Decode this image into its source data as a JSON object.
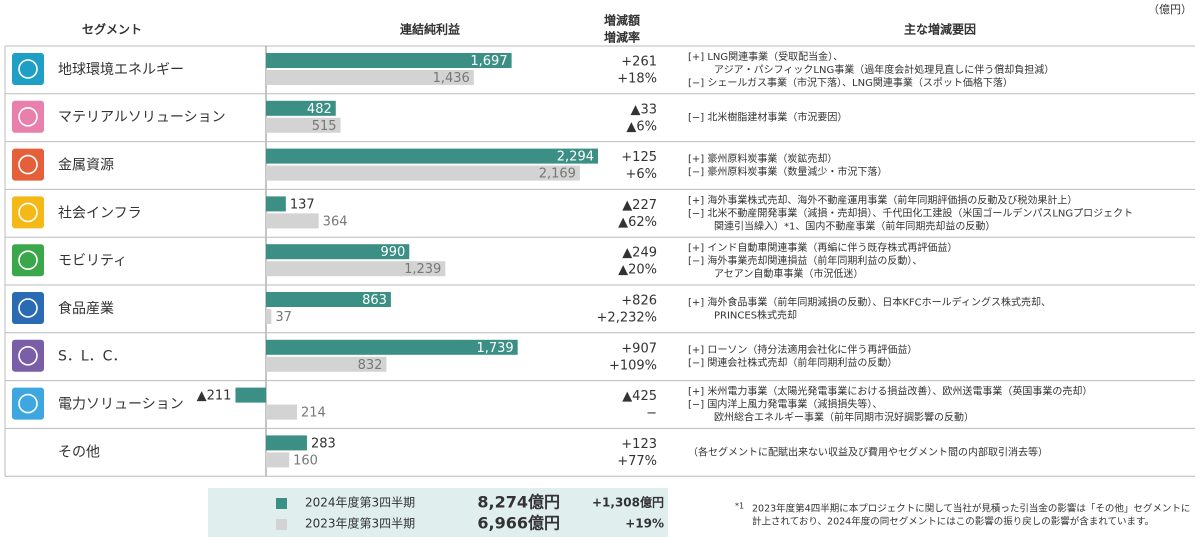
{
  "header": {
    "segment": "セグメント",
    "profit": "連結純利益",
    "change": "増減額",
    "rate": "増減率",
    "reasons": "主な増減要因",
    "unit": "（億円）"
  },
  "legend": {
    "items": [
      {
        "name": "2024年度第3四半期",
        "color": "#3b8f84",
        "total": "8,274億円",
        "change": "+1,308億円"
      },
      {
        "name": "2023年度第3四半期",
        "color": "#d3d3d3",
        "total": "6,966億円",
        "change": "+19%"
      }
    ]
  },
  "rows": [
    {
      "segment": "地球環境エネルギー",
      "icon_color": "#1e9fc6",
      "values": [
        1697,
        1436
      ],
      "value_labels": [
        "1,697",
        "1,436"
      ],
      "change": "+261",
      "rate": "+18%",
      "reasons": [
        "[+] LNG関連事業（受取配当金）、",
        "アジア・パシフィックLNG事業（過年度会計処理見直しに伴う償却負担減）",
        "[−] シェールガス事業（市況下落）、LNG関連事業（スポット価格下落）"
      ]
    },
    {
      "segment": "マテリアルソリューション",
      "icon_color": "#e97fab",
      "values": [
        482,
        515
      ],
      "value_labels": [
        "482",
        "515"
      ],
      "change": "▲33",
      "rate": "▲6%",
      "reasons": [
        "[−] 北米樹脂建材事業（市況要因）"
      ]
    },
    {
      "segment": "金属資源",
      "icon_color": "#e5603a",
      "values": [
        2294,
        2169
      ],
      "value_labels": [
        "2,294",
        "2,169"
      ],
      "change": "+125",
      "rate": "+6%",
      "reasons": [
        "[+] 豪州原料炭事業（炭鉱売却）",
        "[−] 豪州原料炭事業（数量減少・市況下落）"
      ]
    },
    {
      "segment": "社会インフラ",
      "icon_color": "#f4b817",
      "values": [
        137,
        364
      ],
      "value_labels": [
        "137",
        "364"
      ],
      "change": "▲227",
      "rate": "▲62%",
      "reasons": [
        "[+] 海外事業株式売却、海外不動産運用事業（前年同期評価損の反動及び税効果計上）",
        "[−] 北米不動産開発事業（減損・売却損）、千代田化工建設（米国ゴールデンパスLNGプロジェクト",
        "関連引当繰入）*1、国内不動産事業（前年同期売却益の反動）"
      ]
    },
    {
      "segment": "モビリティ",
      "icon_color": "#3aa84a",
      "values": [
        990,
        1239
      ],
      "value_labels": [
        "990",
        "1,239"
      ],
      "change": "▲249",
      "rate": "▲20%",
      "reasons": [
        "[+] インド自動車関連事業（再編に伴う既存株式再評価益）",
        "[−] 海外事業売却関連損益（前年同期利益の反動）、",
        "アセアン自動車事業（市況低迷）"
      ]
    },
    {
      "segment": "食品産業",
      "icon_color": "#2a6bb4",
      "values": [
        863,
        37
      ],
      "value_labels": [
        "863",
        "37"
      ],
      "change": "+826",
      "rate": "+2,232%",
      "reasons": [
        "[+] 海外食品事業（前年同期減損の反動）、日本KFCホールディングス株式売却、",
        "PRINCES株式売却"
      ]
    },
    {
      "segment": "S．L．C．",
      "icon_color": "#7a5ea8",
      "values": [
        1739,
        832
      ],
      "value_labels": [
        "1,739",
        "832"
      ],
      "change": "+907",
      "rate": "+109%",
      "reasons": [
        "[+] ローソン（持分法適用会社化に伴う再評価益）",
        "[−] 関連会社株式売却（前年同期利益の反動）"
      ]
    },
    {
      "segment": "電力ソリューション",
      "icon_color": "#3ea7df",
      "values": [
        -211,
        214
      ],
      "value_labels": [
        "▲211",
        "214"
      ],
      "change": "▲425",
      "rate": "−",
      "reasons": [
        "[+] 米州電力事業（太陽光発電事業における損益改善）、欧州送電事業（英国事業の売却）",
        "[−] 国内洋上風力発電事業（減損損失等）、",
        "欧州総合エネルギー事業（前年同期市況好調影響の反動）"
      ]
    },
    {
      "segment": "その他",
      "values": [
        283,
        160
      ],
      "value_labels": [
        "283",
        "160"
      ],
      "change": "+123",
      "rate": "+77%",
      "reasons": [
        "（各セグメントに配賦出来ない収益及び費用やセグメント間の内部取引消去等）"
      ]
    }
  ],
  "footnote": {
    "mark": "*1",
    "lines": [
      "2023年度第4四半期に本プロジェクトに関して当社が見積った引当金の影響は「その他」セグメントに",
      "計上されており、2024年度の同セグメントにはこの影響の振り戻しの影響が含まれています。"
    ]
  }
}
